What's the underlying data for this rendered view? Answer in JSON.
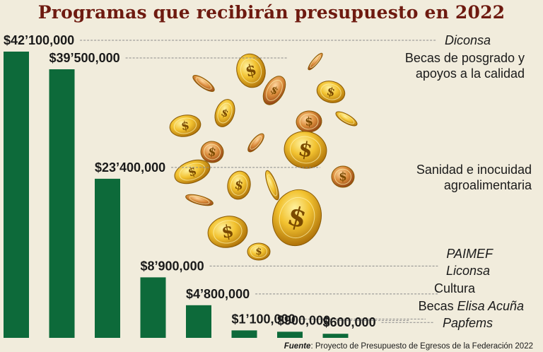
{
  "chart_data": {
    "type": "bar",
    "title": "Programas que recibirán presupuesto en 2022",
    "categories": [
      {
        "parts": [
          {
            "t": "Diconsa",
            "i": true
          }
        ]
      },
      {
        "lines": [
          "Becas de posgrado y",
          "apoyos a la calidad"
        ]
      },
      {
        "lines": [
          "Sanidad e inocuidad",
          "agroalimentaria"
        ]
      },
      {
        "parts": [
          {
            "t": "PAIMEF",
            "i": true
          }
        ]
      },
      {
        "parts": [
          {
            "t": "Liconsa",
            "i": true
          }
        ]
      },
      {
        "parts": [
          {
            "t": "Cultura",
            "i": false
          }
        ]
      },
      {
        "parts": [
          {
            "t": "Becas ",
            "i": false
          },
          {
            "t": "Elisa Acuña",
            "i": true
          }
        ]
      },
      {
        "parts": [
          {
            "t": "Papfems",
            "i": true
          }
        ]
      }
    ],
    "values": [
      42100000,
      39500000,
      23400000,
      8900000,
      4800000,
      1100000,
      900000,
      600000
    ],
    "value_labels": [
      "$42’100,000",
      "$39’500,000",
      "$23’400,000",
      "$8’900,000",
      "$4’800,000",
      "$1’100,000",
      "$900,000",
      "$600,000"
    ],
    "bar_color": "#0d6a3a",
    "leader_color": "#8a8a8a"
  },
  "source": {
    "label": "Fuente",
    "text": ": Proyecto de Presupuesto de Egresos de la Federación 2022"
  }
}
